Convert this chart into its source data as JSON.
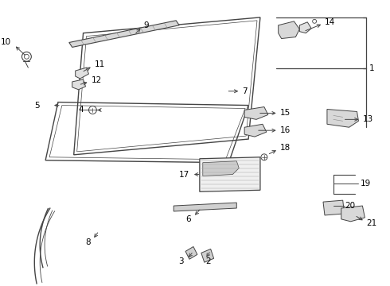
{
  "background": "#ffffff",
  "line_color": "#444444",
  "label_color": "#000000",
  "font_size": 7.5
}
